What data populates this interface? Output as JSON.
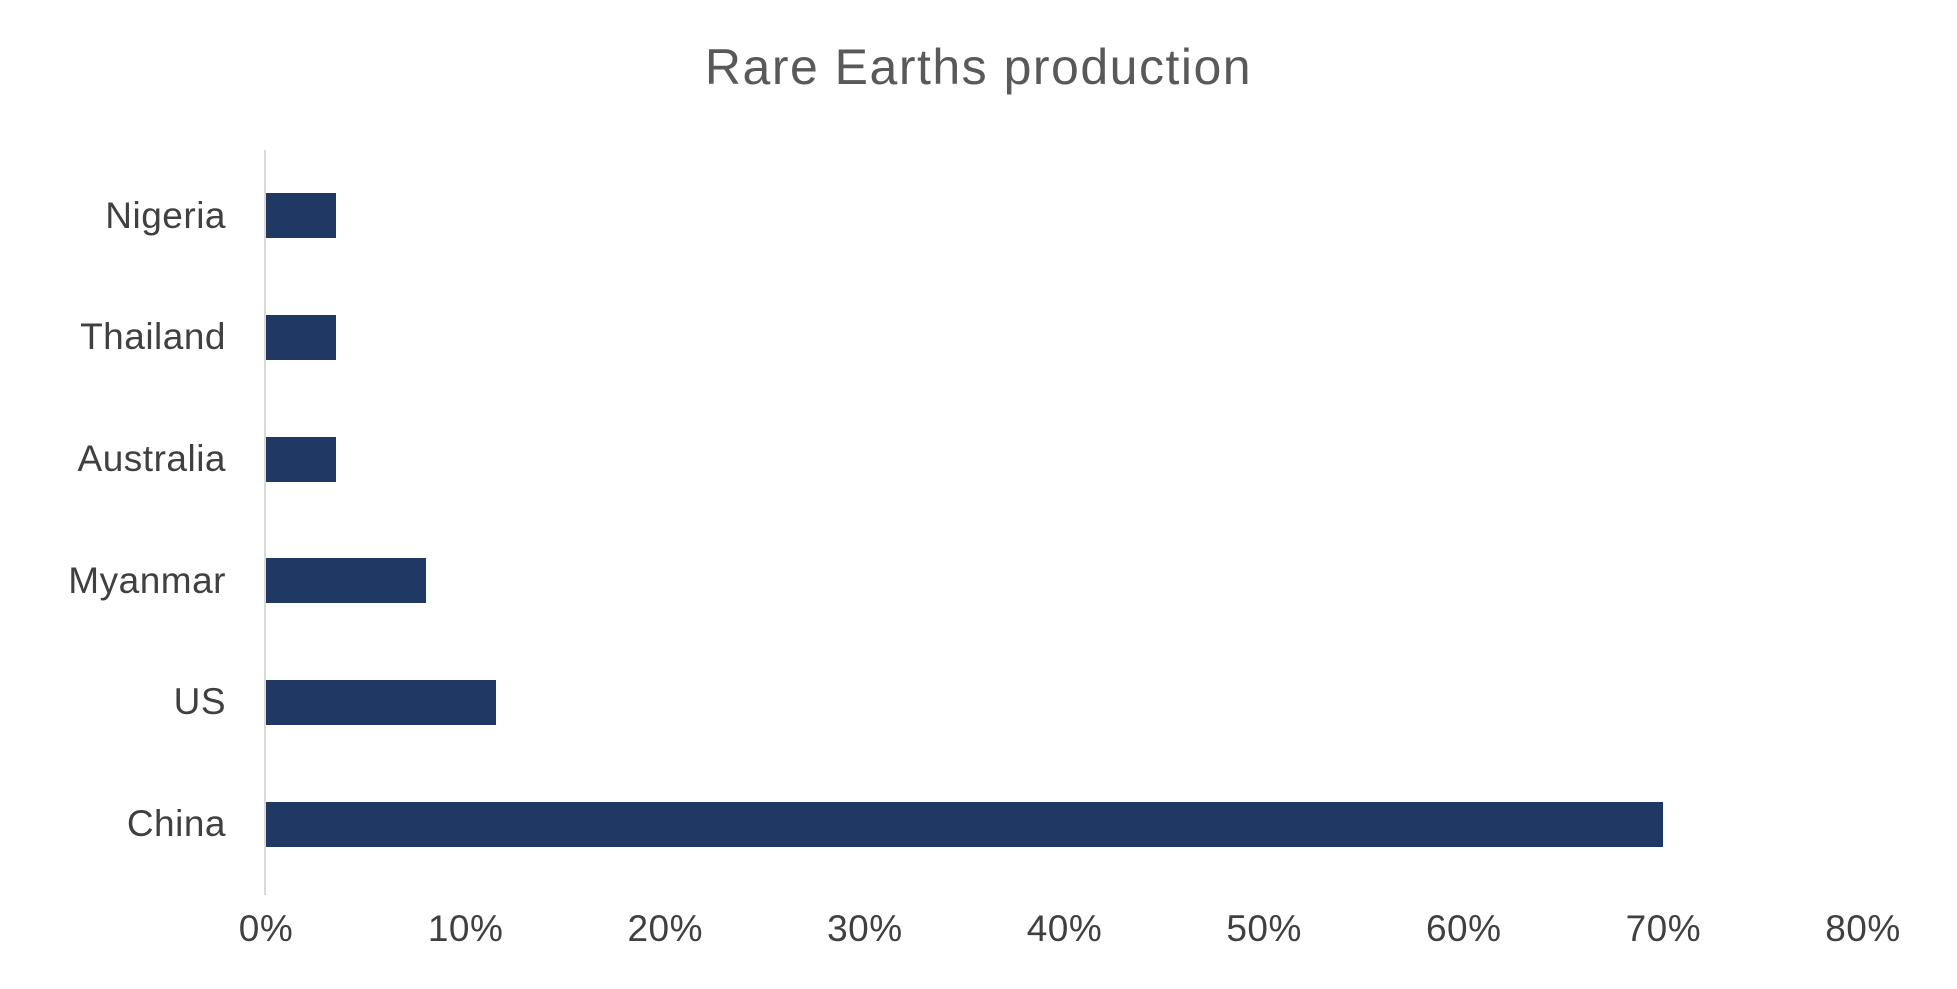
{
  "chart_data": {
    "type": "bar",
    "orientation": "horizontal",
    "title": "Rare Earths production",
    "categories": [
      "Nigeria",
      "Thailand",
      "Australia",
      "Myanmar",
      "US",
      "China"
    ],
    "values": [
      3.5,
      3.5,
      3.5,
      8,
      11.5,
      70
    ],
    "xlabel": "",
    "ylabel": "",
    "xlim": [
      0,
      80
    ],
    "x_tick_labels": [
      "0%",
      "10%",
      "20%",
      "30%",
      "40%",
      "50%",
      "60%",
      "70%",
      "80%"
    ],
    "grid": "off",
    "legend": "none",
    "colors": {
      "bar": "#1f3864",
      "title_text": "#595959",
      "label_text": "#404040",
      "axis_line": "#d9d9d9",
      "background": "#ffffff"
    }
  }
}
